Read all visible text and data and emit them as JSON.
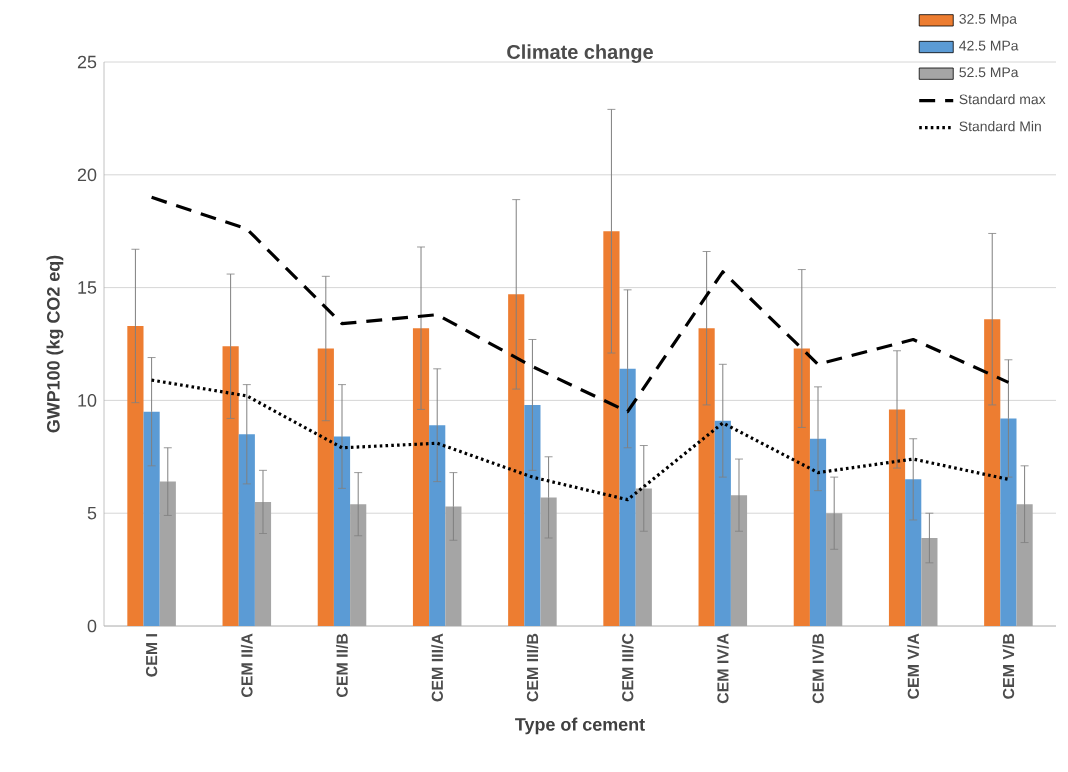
{
  "chart_data": {
    "type": "bar",
    "title": "Climate change",
    "xlabel": "Type of cement",
    "ylabel": "GWP100 (kg CO2 eq)",
    "categories": [
      "CEM I",
      "CEM II/A",
      "CEM II/B",
      "CEM III/A",
      "CEM III/B",
      "CEM III/C",
      "CEM IV/A",
      "CEM IV/B",
      "CEM V/A",
      "CEM V/B"
    ],
    "series": [
      {
        "name": "32.5 Mpa",
        "color": "#ed7d31",
        "values": [
          13.3,
          12.4,
          12.3,
          13.2,
          14.7,
          17.5,
          13.2,
          12.3,
          9.6,
          13.6
        ],
        "errors": [
          3.4,
          3.2,
          3.2,
          3.6,
          4.2,
          5.4,
          3.4,
          3.5,
          2.6,
          3.8
        ]
      },
      {
        "name": "42.5 MPa",
        "color": "#5b9bd5",
        "values": [
          9.5,
          8.5,
          8.4,
          8.9,
          9.8,
          11.4,
          9.1,
          8.3,
          6.5,
          9.2
        ],
        "errors": [
          2.4,
          2.2,
          2.3,
          2.5,
          2.9,
          3.5,
          2.5,
          2.3,
          1.8,
          2.6
        ]
      },
      {
        "name": "52.5 MPa",
        "color": "#a5a5a5",
        "values": [
          6.4,
          5.5,
          5.4,
          5.3,
          5.7,
          6.1,
          5.8,
          5.0,
          3.9,
          5.4
        ],
        "errors": [
          1.5,
          1.4,
          1.4,
          1.5,
          1.8,
          1.9,
          1.6,
          1.6,
          1.1,
          1.7
        ]
      },
      {
        "name": "Standard max",
        "type": "line",
        "line_style": "dashed",
        "color": "#000000",
        "values": [
          19.0,
          17.6,
          13.4,
          13.8,
          11.5,
          9.5,
          15.7,
          11.6,
          12.7,
          10.8
        ]
      },
      {
        "name": "Standard Min",
        "type": "line",
        "line_style": "dotted",
        "color": "#000000",
        "values": [
          10.9,
          10.2,
          7.9,
          8.1,
          6.6,
          5.6,
          9.0,
          6.8,
          7.4,
          6.5
        ]
      }
    ],
    "ylim": [
      0,
      25
    ],
    "yticks": [
      0,
      5,
      10,
      15,
      20,
      25
    ],
    "grid": "y",
    "legend": "top right",
    "marker": "none"
  }
}
